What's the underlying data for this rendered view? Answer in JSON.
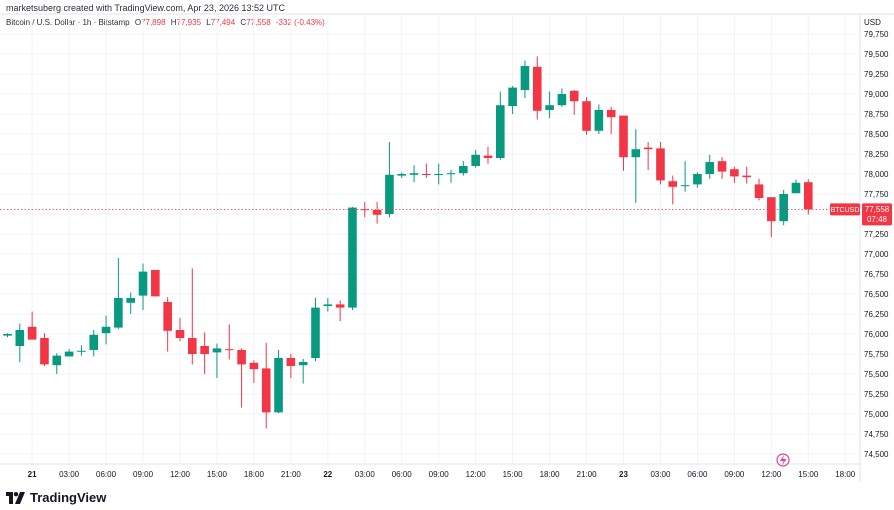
{
  "header": {
    "attribution": "marketsuberg created with TradingView.com, Apr 23, 2026 13:52 UTC"
  },
  "symbol": {
    "name": "Bitcoin / U.S. Dollar · 1h · Bitstamp",
    "open_label": "O",
    "open_value": "77,898",
    "high_label": "H",
    "high_value": "77,935",
    "low_label": "L",
    "low_value": "77,494",
    "close_label": "C",
    "close_value": "77,558",
    "change": "-332 (-0.43%)"
  },
  "price_tag": {
    "ticker": "BTCUSD",
    "price": "77,558",
    "countdown": "07:48"
  },
  "footer": {
    "brand": "TradingView"
  },
  "colors": {
    "up": "#089981",
    "down": "#f23645",
    "grid": "#f0f3fa",
    "axis_text": "#131722"
  },
  "chart_data": {
    "type": "candlestick",
    "currency": "USD",
    "interval": "1h",
    "ylim": [
      74400,
      79800
    ],
    "y_ticks": [
      74500,
      74750,
      75000,
      75250,
      75500,
      75750,
      76000,
      76250,
      76500,
      76750,
      77000,
      77250,
      77500,
      77750,
      78000,
      78250,
      78500,
      78750,
      79000,
      79250,
      79500,
      79750
    ],
    "y_tick_labels": [
      "74,500",
      "74,750",
      "75,000",
      "75,250",
      "75,500",
      "75,750",
      "76,000",
      "76,250",
      "76,500",
      "76,750",
      "77,000",
      "77,250",
      "77,500",
      "77,750",
      "78,000",
      "78,250",
      "78,500",
      "78,750",
      "79,000",
      "79,250",
      "79,500",
      "79,750"
    ],
    "x_ticks": [
      {
        "label": "21",
        "bar": 2,
        "bold": true
      },
      {
        "label": "03:00",
        "bar": 5
      },
      {
        "label": "06:00",
        "bar": 8
      },
      {
        "label": "09:00",
        "bar": 11
      },
      {
        "label": "12:00",
        "bar": 14
      },
      {
        "label": "15:00",
        "bar": 17
      },
      {
        "label": "18:00",
        "bar": 20
      },
      {
        "label": "21:00",
        "bar": 23
      },
      {
        "label": "22",
        "bar": 26,
        "bold": true
      },
      {
        "label": "03:00",
        "bar": 29
      },
      {
        "label": "06:00",
        "bar": 32
      },
      {
        "label": "09:00",
        "bar": 35
      },
      {
        "label": "12:00",
        "bar": 38
      },
      {
        "label": "15:00",
        "bar": 41
      },
      {
        "label": "18:00",
        "bar": 44
      },
      {
        "label": "21:00",
        "bar": 47
      },
      {
        "label": "23",
        "bar": 50,
        "bold": true
      },
      {
        "label": "03:00",
        "bar": 53
      },
      {
        "label": "06:00",
        "bar": 56
      },
      {
        "label": "09:00",
        "bar": 59
      },
      {
        "label": "12:00",
        "bar": 62
      },
      {
        "label": "15:00",
        "bar": 65
      },
      {
        "label": "18:00",
        "bar": 68
      }
    ],
    "last_price": 77558,
    "candles": [
      {
        "o": 75980,
        "h": 76010,
        "l": 75960,
        "c": 76000
      },
      {
        "o": 75850,
        "h": 76130,
        "l": 75650,
        "c": 76050
      },
      {
        "o": 76090,
        "h": 76280,
        "l": 75930,
        "c": 75930
      },
      {
        "o": 75950,
        "h": 76010,
        "l": 75600,
        "c": 75620
      },
      {
        "o": 75610,
        "h": 75760,
        "l": 75500,
        "c": 75730
      },
      {
        "o": 75720,
        "h": 75810,
        "l": 75720,
        "c": 75780
      },
      {
        "o": 75780,
        "h": 75860,
        "l": 75730,
        "c": 75790
      },
      {
        "o": 75800,
        "h": 76050,
        "l": 75720,
        "c": 75990
      },
      {
        "o": 76010,
        "h": 76230,
        "l": 75870,
        "c": 76090
      },
      {
        "o": 76080,
        "h": 76950,
        "l": 76060,
        "c": 76450
      },
      {
        "o": 76390,
        "h": 76520,
        "l": 76250,
        "c": 76450
      },
      {
        "o": 76480,
        "h": 76880,
        "l": 76300,
        "c": 76780
      },
      {
        "o": 76800,
        "h": 76800,
        "l": 76490,
        "c": 76470
      },
      {
        "o": 76400,
        "h": 76460,
        "l": 75780,
        "c": 76040
      },
      {
        "o": 76050,
        "h": 76200,
        "l": 75910,
        "c": 75950
      },
      {
        "o": 75950,
        "h": 76820,
        "l": 75620,
        "c": 75750
      },
      {
        "o": 75850,
        "h": 76020,
        "l": 75500,
        "c": 75750
      },
      {
        "o": 75770,
        "h": 75880,
        "l": 75450,
        "c": 75820
      },
      {
        "o": 75810,
        "h": 76120,
        "l": 75680,
        "c": 75800
      },
      {
        "o": 75800,
        "h": 75820,
        "l": 75080,
        "c": 75620
      },
      {
        "o": 75640,
        "h": 75670,
        "l": 75390,
        "c": 75560
      },
      {
        "o": 75570,
        "h": 75890,
        "l": 74820,
        "c": 75020
      },
      {
        "o": 75020,
        "h": 75800,
        "l": 75010,
        "c": 75700
      },
      {
        "o": 75700,
        "h": 75750,
        "l": 75450,
        "c": 75600
      },
      {
        "o": 75610,
        "h": 75690,
        "l": 75380,
        "c": 75650
      },
      {
        "o": 75700,
        "h": 76450,
        "l": 75660,
        "c": 76330
      },
      {
        "o": 76350,
        "h": 76450,
        "l": 76280,
        "c": 76370
      },
      {
        "o": 76370,
        "h": 76420,
        "l": 76160,
        "c": 76330
      },
      {
        "o": 76330,
        "h": 77590,
        "l": 76300,
        "c": 77580
      },
      {
        "o": 77560,
        "h": 77650,
        "l": 77460,
        "c": 77550
      },
      {
        "o": 77550,
        "h": 77650,
        "l": 77380,
        "c": 77490
      },
      {
        "o": 77500,
        "h": 78400,
        "l": 77460,
        "c": 77990
      },
      {
        "o": 77980,
        "h": 78020,
        "l": 77950,
        "c": 78000
      },
      {
        "o": 77990,
        "h": 78110,
        "l": 77900,
        "c": 78010
      },
      {
        "o": 78000,
        "h": 78130,
        "l": 77950,
        "c": 77990
      },
      {
        "o": 77990,
        "h": 78130,
        "l": 77870,
        "c": 78000
      },
      {
        "o": 78000,
        "h": 78050,
        "l": 77890,
        "c": 78010
      },
      {
        "o": 78010,
        "h": 78160,
        "l": 77980,
        "c": 78100
      },
      {
        "o": 78100,
        "h": 78300,
        "l": 78080,
        "c": 78240
      },
      {
        "o": 78230,
        "h": 78340,
        "l": 78130,
        "c": 78200
      },
      {
        "o": 78200,
        "h": 79030,
        "l": 78180,
        "c": 78860
      },
      {
        "o": 78850,
        "h": 79100,
        "l": 78750,
        "c": 79080
      },
      {
        "o": 79050,
        "h": 79420,
        "l": 78950,
        "c": 79350
      },
      {
        "o": 79340,
        "h": 79470,
        "l": 78680,
        "c": 78790
      },
      {
        "o": 78800,
        "h": 79030,
        "l": 78700,
        "c": 78860
      },
      {
        "o": 78860,
        "h": 79070,
        "l": 78840,
        "c": 79000
      },
      {
        "o": 79040,
        "h": 79050,
        "l": 78740,
        "c": 78910
      },
      {
        "o": 78910,
        "h": 78960,
        "l": 78490,
        "c": 78540
      },
      {
        "o": 78540,
        "h": 78870,
        "l": 78500,
        "c": 78800
      },
      {
        "o": 78800,
        "h": 78840,
        "l": 78500,
        "c": 78710
      },
      {
        "o": 78730,
        "h": 78730,
        "l": 78040,
        "c": 78210
      },
      {
        "o": 78210,
        "h": 78560,
        "l": 77640,
        "c": 78310
      },
      {
        "o": 78330,
        "h": 78400,
        "l": 78050,
        "c": 78310
      },
      {
        "o": 78320,
        "h": 78400,
        "l": 77870,
        "c": 77920
      },
      {
        "o": 77910,
        "h": 77980,
        "l": 77620,
        "c": 77840
      },
      {
        "o": 77860,
        "h": 78160,
        "l": 77780,
        "c": 77860
      },
      {
        "o": 77870,
        "h": 78020,
        "l": 77830,
        "c": 78000
      },
      {
        "o": 78000,
        "h": 78240,
        "l": 77940,
        "c": 78150
      },
      {
        "o": 78160,
        "h": 78210,
        "l": 77940,
        "c": 78030
      },
      {
        "o": 78060,
        "h": 78090,
        "l": 77890,
        "c": 77970
      },
      {
        "o": 77980,
        "h": 78090,
        "l": 77880,
        "c": 77960
      },
      {
        "o": 77870,
        "h": 77940,
        "l": 77670,
        "c": 77700
      },
      {
        "o": 77710,
        "h": 77710,
        "l": 77210,
        "c": 77410
      },
      {
        "o": 77410,
        "h": 77800,
        "l": 77360,
        "c": 77750
      },
      {
        "o": 77760,
        "h": 77930,
        "l": 77760,
        "c": 77890
      },
      {
        "o": 77898,
        "h": 77935,
        "l": 77494,
        "c": 77558
      }
    ]
  }
}
